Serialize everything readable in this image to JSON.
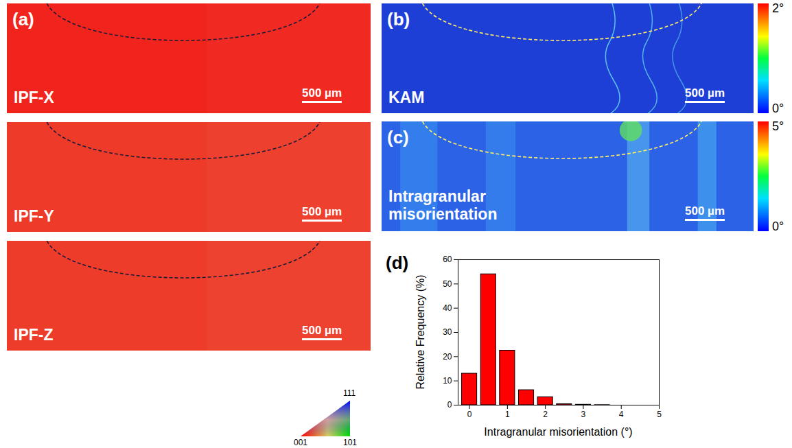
{
  "panels": [
    {
      "label": "(a)",
      "maps": [
        {
          "text": "IPF-X",
          "color": "#f0241c"
        },
        {
          "text": "IPF-Y",
          "color": "#ee3a28"
        },
        {
          "text": "IPF-Z",
          "color": "#ee3c2a"
        }
      ],
      "scale_bar": "500 µm",
      "ipf_legend": {
        "corners": [
          "001",
          "101",
          "111"
        ]
      }
    },
    {
      "label": "(b)",
      "text": "KAM",
      "color": "#1e3fd6",
      "scale_bar": "500 µm",
      "colorbar": {
        "range": [
          0,
          2
        ],
        "ticks": [
          {
            "value": 0,
            "label": "0°"
          },
          {
            "value": 2,
            "label": "2°"
          }
        ]
      }
    },
    {
      "label": "(c)",
      "text": "Intragranular misorientation",
      "color": "#2c62e6",
      "scale_bar": "500 µm",
      "colorbar": {
        "range": [
          0,
          5
        ],
        "ticks": [
          {
            "value": 0,
            "label": "0°"
          },
          {
            "value": 5,
            "label": "5°"
          }
        ]
      }
    },
    {
      "label": "(d)"
    }
  ],
  "chart_data": {
    "type": "bar",
    "x": [
      0,
      0.5,
      1,
      1.5,
      2,
      2.5,
      3,
      3.5
    ],
    "values": [
      13,
      54,
      22.5,
      6.2,
      3.3,
      0.4,
      0.2,
      0.05
    ],
    "color": "#ff0000",
    "xlabel": "Intragranular misorientation (°)",
    "ylabel": "Relative Frequency  (%)",
    "xlim": [
      -0.3,
      5
    ],
    "xticks": [
      0,
      1,
      2,
      3,
      4,
      5
    ],
    "ylim": [
      0,
      60
    ],
    "yticks": [
      0,
      10,
      20,
      30,
      40,
      50,
      60
    ]
  }
}
